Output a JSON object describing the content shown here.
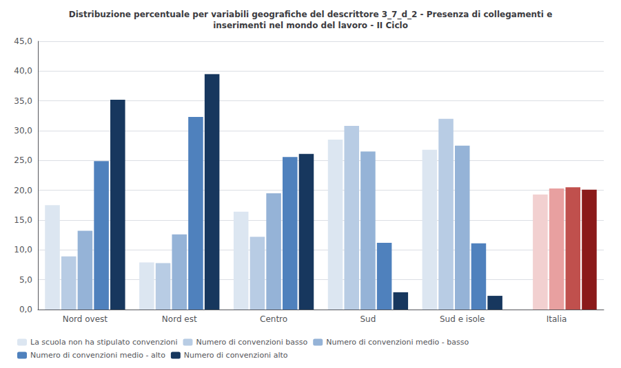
{
  "chart_data": {
    "type": "bar",
    "title": "Distribuzione percentuale per variabili geografiche del descrittore 3_7_d_2 - Presenza di collegamenti e\ninserimenti nel mondo del lavoro - II Ciclo",
    "categories": [
      "Nord ovest",
      "Nord est",
      "Centro",
      "Sud",
      "Sud e isole",
      "Italia"
    ],
    "series": [
      {
        "name": "La scuola non ha stipulato convenzioni",
        "color": "#dce6f1",
        "values": [
          17.5,
          7.9,
          16.4,
          28.5,
          26.8,
          0.0
        ],
        "colors": [
          "#dce6f1",
          "#dce6f1",
          "#dce6f1",
          "#dce6f1",
          "#dce6f1",
          "#dce6f1"
        ]
      },
      {
        "name": "Numero di convenzioni basso",
        "color": "#b8cce4",
        "values": [
          8.9,
          7.8,
          12.2,
          30.8,
          32.0,
          19.3
        ],
        "colors": [
          "#b8cce4",
          "#b8cce4",
          "#b8cce4",
          "#b8cce4",
          "#b8cce4",
          "#f2d0d0"
        ]
      },
      {
        "name": "Numero di convenzioni medio - basso",
        "color": "#95b3d7",
        "values": [
          13.2,
          12.6,
          19.5,
          26.5,
          27.5,
          20.3
        ],
        "colors": [
          "#95b3d7",
          "#95b3d7",
          "#95b3d7",
          "#95b3d7",
          "#95b3d7",
          "#e8a0a0"
        ]
      },
      {
        "name": "Numero di convenzioni medio - alto",
        "color": "#4f81bd",
        "values": [
          24.9,
          32.3,
          25.6,
          11.2,
          11.1,
          20.5
        ],
        "colors": [
          "#4f81bd",
          "#4f81bd",
          "#4f81bd",
          "#4f81bd",
          "#4f81bd",
          "#c0504d"
        ]
      },
      {
        "name": "Numero di convenzioni alto",
        "color": "#17375e",
        "values": [
          35.2,
          39.5,
          26.1,
          2.9,
          2.3,
          20.1
        ],
        "colors": [
          "#17375e",
          "#17375e",
          "#17375e",
          "#17375e",
          "#17375e",
          "#8b1a1a"
        ]
      }
    ],
    "ylim": [
      0,
      45
    ],
    "yticks": [
      {
        "value": 0,
        "label": "0,0"
      },
      {
        "value": 5,
        "label": "5,0"
      },
      {
        "value": 10,
        "label": "10,0"
      },
      {
        "value": 15,
        "label": "15,0"
      },
      {
        "value": 20,
        "label": "20,0"
      },
      {
        "value": 25,
        "label": "25,0"
      },
      {
        "value": 30,
        "label": "30,0"
      },
      {
        "value": 35,
        "label": "35,0"
      },
      {
        "value": 40,
        "label": "40,0"
      },
      {
        "value": 45,
        "label": "45,0"
      }
    ],
    "grid": true,
    "legend": "lower left"
  }
}
